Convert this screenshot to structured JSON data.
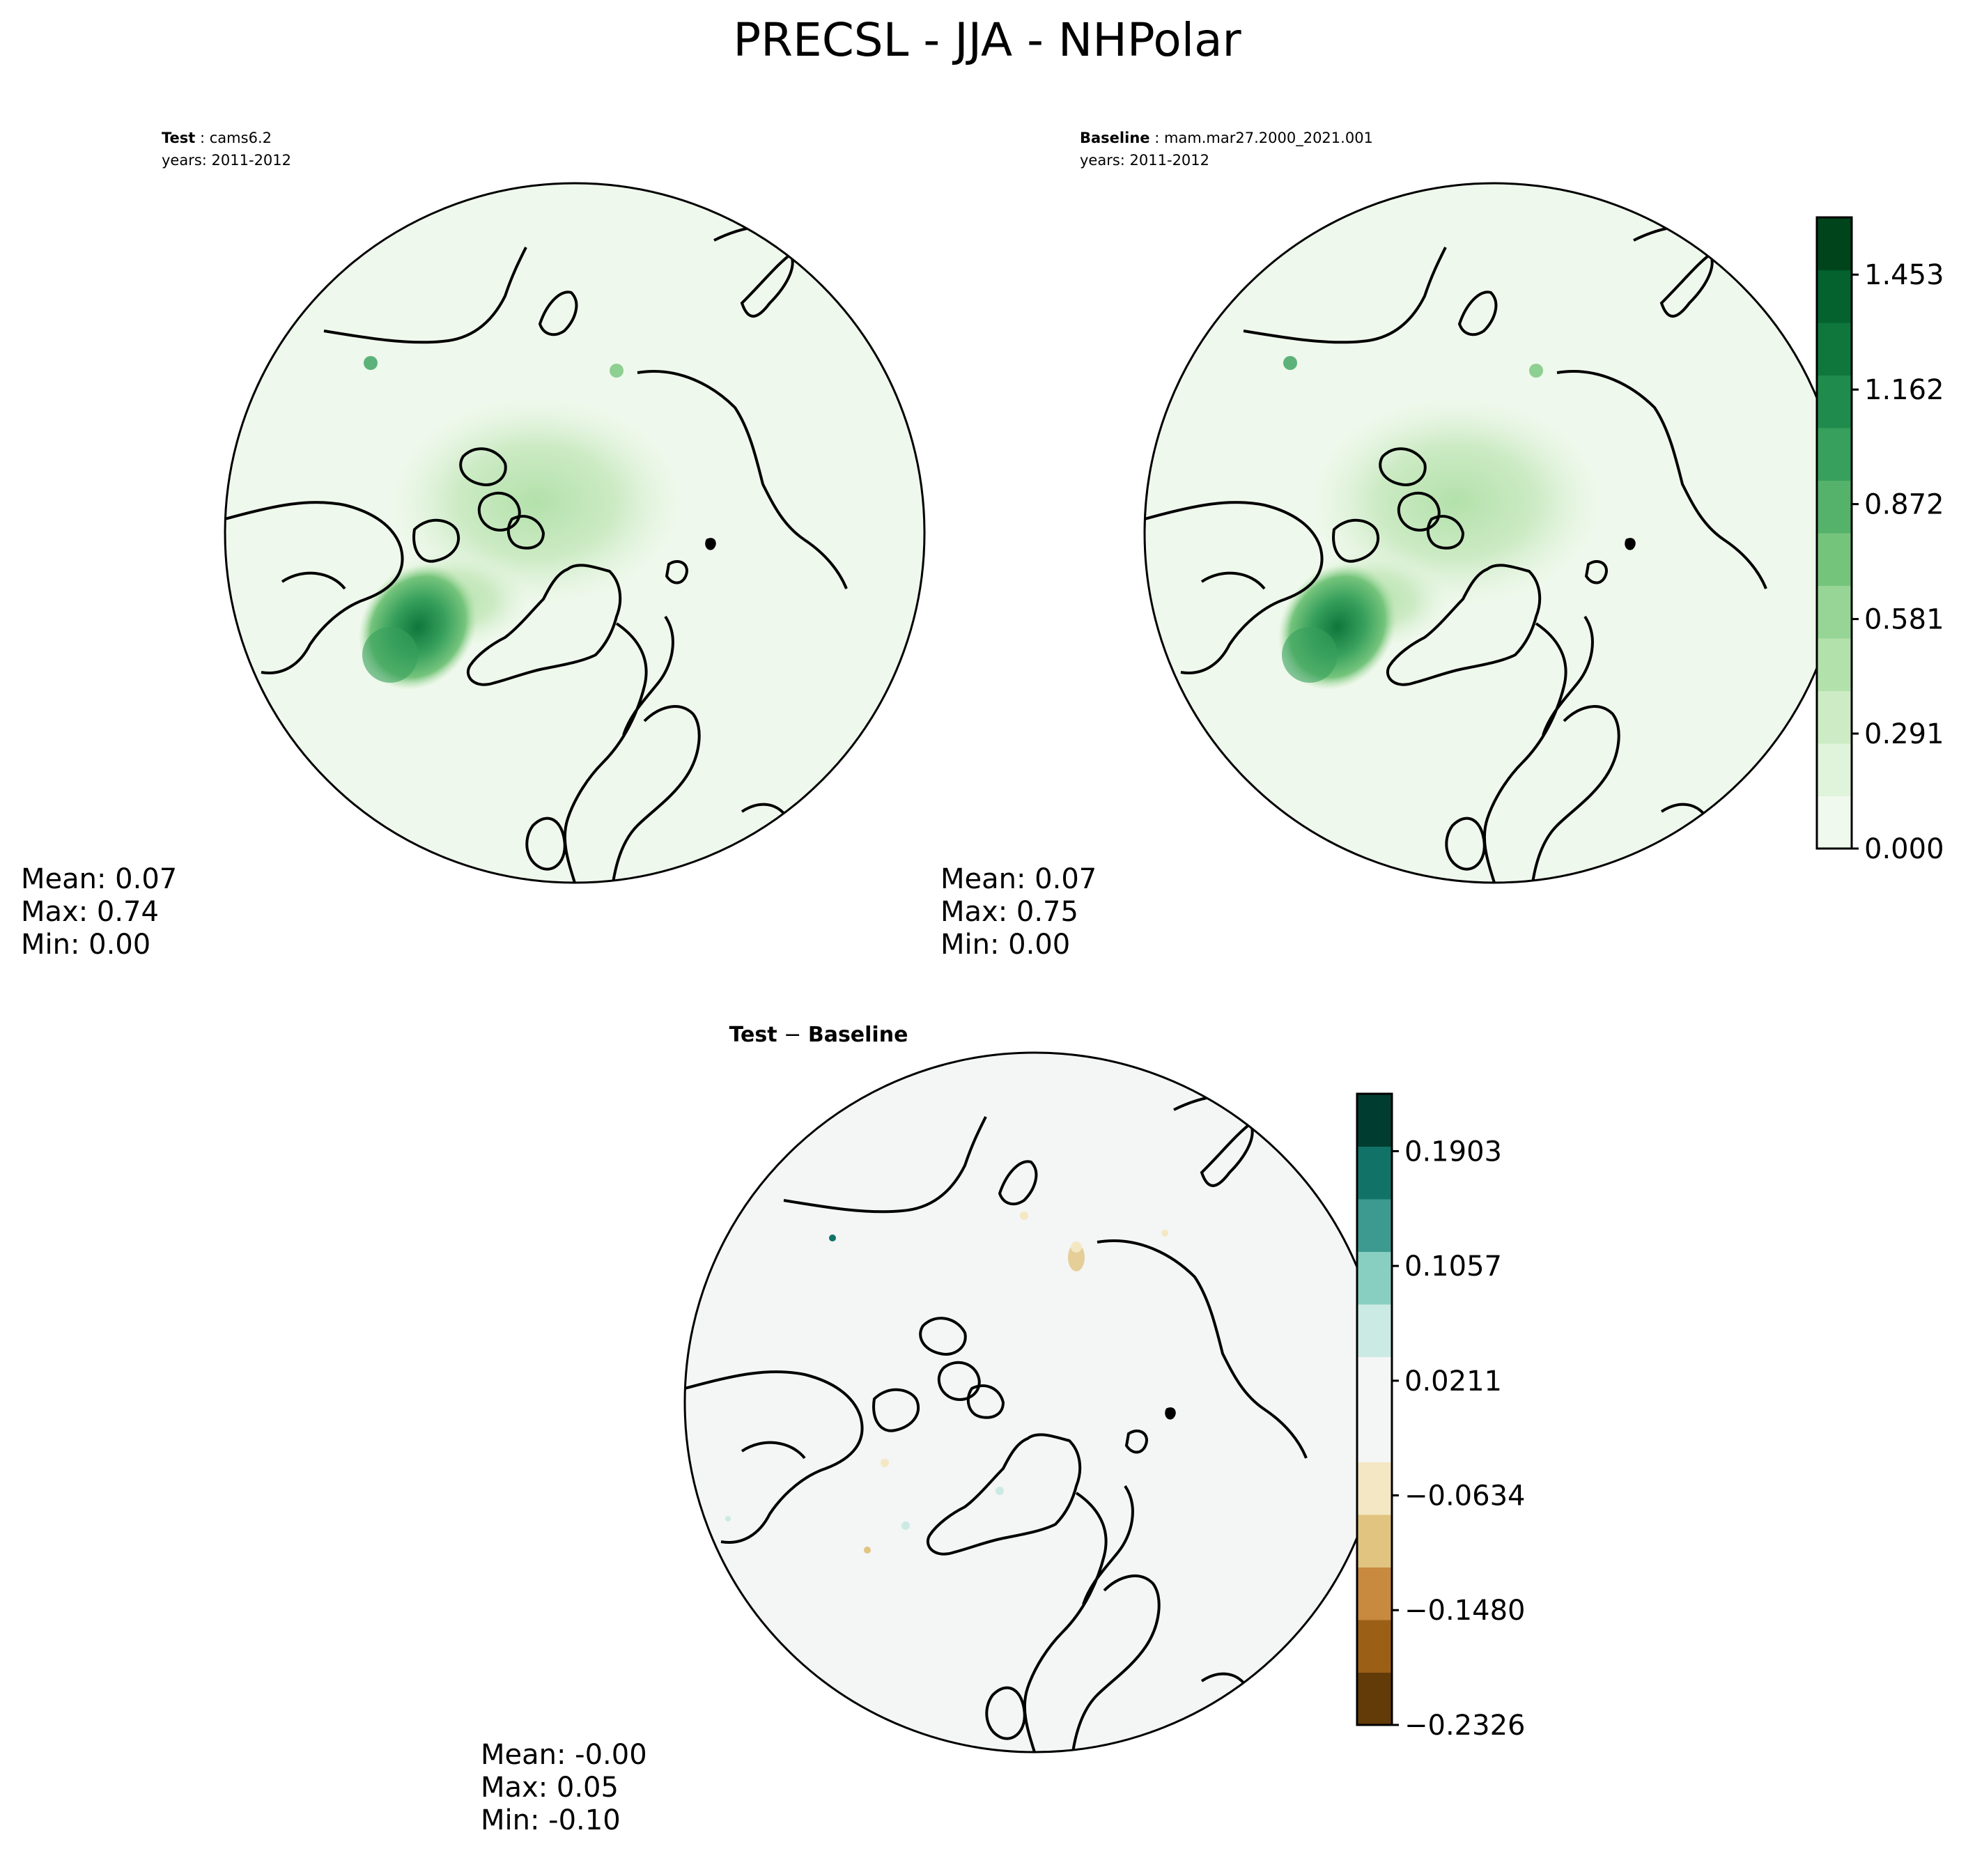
{
  "figure": {
    "title": "PRECSL - JJA - NHPolar"
  },
  "chart_data": [
    {
      "type": "heatmap",
      "projection": "north-polar-stereographic",
      "case_label": "Test",
      "case_name": "cams6.2",
      "years": "years: 2011-2012",
      "stats": {
        "mean": "Mean:  0.07",
        "max": "Max:  0.74",
        "min": "Min:  0.00"
      },
      "colormap": "greens"
    },
    {
      "type": "heatmap",
      "projection": "north-polar-stereographic",
      "case_label": "Baseline",
      "case_name": "mam.mar27.2000_2021.001",
      "years": "years: 2011-2012",
      "stats": {
        "mean": "Mean:  0.07",
        "max": "Max:  0.75",
        "min": "Min:  0.00"
      },
      "colormap": "greens",
      "colorbar": {
        "ticks": [
          "0.000",
          "0.291",
          "0.581",
          "0.872",
          "1.162",
          "1.453"
        ],
        "tick_values": [
          0.0,
          0.291,
          0.581,
          0.872,
          1.162,
          1.453
        ],
        "range": [
          0.0,
          1.598
        ],
        "colors": [
          "#f0f9ed",
          "#e0f3db",
          "#cdebc5",
          "#b3e1ab",
          "#96d595",
          "#75c47c",
          "#54b26b",
          "#37a05c",
          "#1f8b4c",
          "#0f763c",
          "#03622e",
          "#00441b"
        ]
      }
    },
    {
      "type": "heatmap",
      "projection": "north-polar-stereographic",
      "title_a": "Test",
      "title_op": " − ",
      "title_b": "Baseline",
      "stats": {
        "mean": "Mean: -0.00",
        "max": "Max:  0.05",
        "min": "Min: -0.10"
      },
      "colormap": "brown-blue-green",
      "colorbar": {
        "ticks": [
          "−0.2326",
          "−0.1480",
          "−0.0634",
          "0.0211",
          "0.1057",
          "0.1903"
        ],
        "tick_values": [
          -0.2326,
          -0.148,
          -0.0634,
          0.0211,
          0.1057,
          0.1903
        ],
        "range": [
          -0.2326,
          0.2326
        ],
        "colors": [
          "#633b08",
          "#9b5f16",
          "#c78a3f",
          "#e1c47f",
          "#f4e7c3",
          "#f4f5f5",
          "#f4f5f5",
          "#cbeae4",
          "#89cfc1",
          "#3d9a90",
          "#117368",
          "#013c30"
        ]
      }
    }
  ]
}
